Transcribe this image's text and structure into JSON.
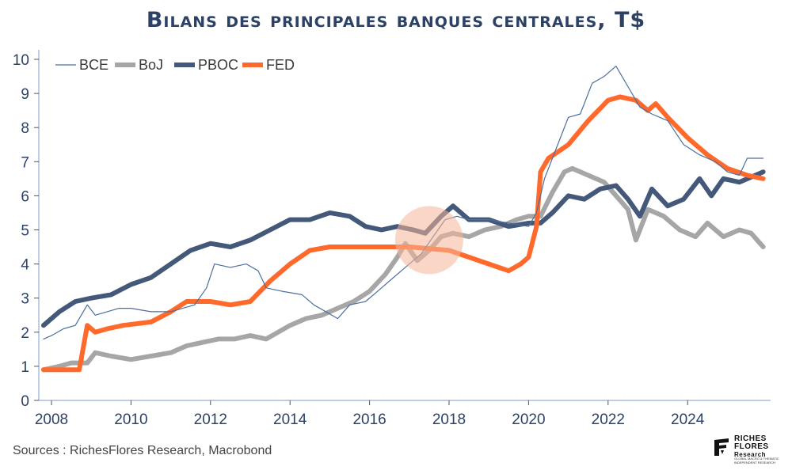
{
  "title": "Bilans des principales banques centrales, T$",
  "source": "Sources : RichesFlores Research, Macrobond",
  "logo": {
    "line1": "RICHES",
    "line2": "FLORES",
    "line3": "Research",
    "tagline1": "GLOBAL MACRO & THEMATIC",
    "tagline2": "INDEPENDENT RESEARCH"
  },
  "colors": {
    "BCE": "#4a6fa0",
    "BoJ": "#a6a6a6",
    "PBOC": "#44597a",
    "FED": "#ff6a2c",
    "axis": "#7f9cc4",
    "text": "#2b4266",
    "highlight": "#f6b597"
  },
  "chart_data": {
    "type": "line",
    "title": "Bilans des principales banques centrales, T$",
    "xlabel": "",
    "ylabel": "",
    "xlim": [
      2007.7,
      2026.1
    ],
    "ylim": [
      0,
      10
    ],
    "xticks": [
      2008,
      2010,
      2012,
      2014,
      2016,
      2018,
      2020,
      2022,
      2024
    ],
    "yticks": [
      0,
      1,
      2,
      3,
      4,
      5,
      6,
      7,
      8,
      9,
      10
    ],
    "grid": false,
    "legend": "top-left",
    "annotations": [
      {
        "type": "circle",
        "x": 2017.5,
        "y": 4.7,
        "label": ""
      }
    ],
    "series": [
      {
        "name": "BCE",
        "points": [
          [
            2007.8,
            1.8
          ],
          [
            2008.0,
            1.9
          ],
          [
            2008.3,
            2.1
          ],
          [
            2008.6,
            2.2
          ],
          [
            2008.9,
            2.8
          ],
          [
            2009.1,
            2.5
          ],
          [
            2009.4,
            2.6
          ],
          [
            2009.7,
            2.7
          ],
          [
            2010.0,
            2.7
          ],
          [
            2010.5,
            2.6
          ],
          [
            2011.0,
            2.6
          ],
          [
            2011.3,
            2.7
          ],
          [
            2011.6,
            2.8
          ],
          [
            2011.9,
            3.3
          ],
          [
            2012.1,
            4.0
          ],
          [
            2012.5,
            3.9
          ],
          [
            2012.9,
            4.0
          ],
          [
            2013.2,
            3.8
          ],
          [
            2013.4,
            3.3
          ],
          [
            2013.8,
            3.2
          ],
          [
            2014.3,
            3.1
          ],
          [
            2014.6,
            2.8
          ],
          [
            2014.9,
            2.6
          ],
          [
            2015.2,
            2.4
          ],
          [
            2015.5,
            2.8
          ],
          [
            2015.9,
            2.9
          ],
          [
            2016.3,
            3.3
          ],
          [
            2016.7,
            3.7
          ],
          [
            2017.0,
            4.0
          ],
          [
            2017.3,
            4.3
          ],
          [
            2017.6,
            4.8
          ],
          [
            2017.9,
            5.3
          ],
          [
            2018.2,
            5.4
          ],
          [
            2018.5,
            5.3
          ],
          [
            2019.0,
            5.3
          ],
          [
            2019.5,
            5.2
          ],
          [
            2020.0,
            5.1
          ],
          [
            2020.2,
            5.5
          ],
          [
            2020.4,
            6.5
          ],
          [
            2020.7,
            7.4
          ],
          [
            2021.0,
            8.3
          ],
          [
            2021.3,
            8.4
          ],
          [
            2021.6,
            9.3
          ],
          [
            2021.9,
            9.5
          ],
          [
            2022.2,
            9.8
          ],
          [
            2022.5,
            9.2
          ],
          [
            2022.8,
            8.6
          ],
          [
            2023.1,
            8.4
          ],
          [
            2023.5,
            8.2
          ],
          [
            2023.9,
            7.5
          ],
          [
            2024.3,
            7.2
          ],
          [
            2024.7,
            7.0
          ],
          [
            2025.0,
            6.7
          ],
          [
            2025.3,
            6.6
          ],
          [
            2025.5,
            7.1
          ],
          [
            2025.9,
            7.1
          ]
        ]
      },
      {
        "name": "BoJ",
        "points": [
          [
            2007.8,
            0.9
          ],
          [
            2008.2,
            1.0
          ],
          [
            2008.5,
            1.1
          ],
          [
            2008.9,
            1.1
          ],
          [
            2009.1,
            1.4
          ],
          [
            2009.5,
            1.3
          ],
          [
            2010.0,
            1.2
          ],
          [
            2010.5,
            1.3
          ],
          [
            2011.0,
            1.4
          ],
          [
            2011.4,
            1.6
          ],
          [
            2011.8,
            1.7
          ],
          [
            2012.2,
            1.8
          ],
          [
            2012.6,
            1.8
          ],
          [
            2013.0,
            1.9
          ],
          [
            2013.4,
            1.8
          ],
          [
            2013.7,
            2.0
          ],
          [
            2014.0,
            2.2
          ],
          [
            2014.4,
            2.4
          ],
          [
            2014.8,
            2.5
          ],
          [
            2015.2,
            2.7
          ],
          [
            2015.6,
            2.9
          ],
          [
            2016.0,
            3.2
          ],
          [
            2016.4,
            3.7
          ],
          [
            2016.7,
            4.2
          ],
          [
            2016.9,
            4.6
          ],
          [
            2017.2,
            4.1
          ],
          [
            2017.5,
            4.4
          ],
          [
            2017.8,
            4.8
          ],
          [
            2018.1,
            4.9
          ],
          [
            2018.5,
            4.8
          ],
          [
            2018.9,
            5.0
          ],
          [
            2019.3,
            5.1
          ],
          [
            2019.7,
            5.3
          ],
          [
            2020.0,
            5.4
          ],
          [
            2020.3,
            5.4
          ],
          [
            2020.6,
            6.1
          ],
          [
            2020.9,
            6.7
          ],
          [
            2021.1,
            6.8
          ],
          [
            2021.5,
            6.6
          ],
          [
            2021.9,
            6.4
          ],
          [
            2022.2,
            6.0
          ],
          [
            2022.5,
            5.6
          ],
          [
            2022.7,
            4.7
          ],
          [
            2023.0,
            5.6
          ],
          [
            2023.4,
            5.4
          ],
          [
            2023.8,
            5.0
          ],
          [
            2024.2,
            4.8
          ],
          [
            2024.5,
            5.2
          ],
          [
            2024.9,
            4.8
          ],
          [
            2025.3,
            5.0
          ],
          [
            2025.6,
            4.9
          ],
          [
            2025.9,
            4.5
          ]
        ]
      },
      {
        "name": "PBOC",
        "points": [
          [
            2007.8,
            2.2
          ],
          [
            2008.2,
            2.6
          ],
          [
            2008.6,
            2.9
          ],
          [
            2009.0,
            3.0
          ],
          [
            2009.5,
            3.1
          ],
          [
            2010.0,
            3.4
          ],
          [
            2010.5,
            3.6
          ],
          [
            2011.0,
            4.0
          ],
          [
            2011.5,
            4.4
          ],
          [
            2012.0,
            4.6
          ],
          [
            2012.5,
            4.5
          ],
          [
            2013.0,
            4.7
          ],
          [
            2013.5,
            5.0
          ],
          [
            2014.0,
            5.3
          ],
          [
            2014.5,
            5.3
          ],
          [
            2015.0,
            5.5
          ],
          [
            2015.5,
            5.4
          ],
          [
            2015.9,
            5.1
          ],
          [
            2016.3,
            5.0
          ],
          [
            2016.7,
            5.1
          ],
          [
            2017.1,
            5.0
          ],
          [
            2017.4,
            4.9
          ],
          [
            2017.8,
            5.4
          ],
          [
            2018.1,
            5.7
          ],
          [
            2018.5,
            5.3
          ],
          [
            2019.0,
            5.3
          ],
          [
            2019.5,
            5.1
          ],
          [
            2020.0,
            5.2
          ],
          [
            2020.3,
            5.2
          ],
          [
            2020.6,
            5.5
          ],
          [
            2021.0,
            6.0
          ],
          [
            2021.4,
            5.9
          ],
          [
            2021.8,
            6.2
          ],
          [
            2022.2,
            6.3
          ],
          [
            2022.5,
            5.9
          ],
          [
            2022.8,
            5.4
          ],
          [
            2023.1,
            6.2
          ],
          [
            2023.5,
            5.7
          ],
          [
            2023.9,
            5.9
          ],
          [
            2024.3,
            6.5
          ],
          [
            2024.6,
            6.0
          ],
          [
            2024.9,
            6.5
          ],
          [
            2025.3,
            6.4
          ],
          [
            2025.9,
            6.7
          ]
        ]
      },
      {
        "name": "FED",
        "points": [
          [
            2007.8,
            0.9
          ],
          [
            2008.4,
            0.9
          ],
          [
            2008.7,
            0.9
          ],
          [
            2008.9,
            2.2
          ],
          [
            2009.1,
            2.0
          ],
          [
            2009.4,
            2.1
          ],
          [
            2009.8,
            2.2
          ],
          [
            2010.5,
            2.3
          ],
          [
            2011.0,
            2.6
          ],
          [
            2011.4,
            2.9
          ],
          [
            2012.0,
            2.9
          ],
          [
            2012.5,
            2.8
          ],
          [
            2013.0,
            2.9
          ],
          [
            2013.5,
            3.5
          ],
          [
            2014.0,
            4.0
          ],
          [
            2014.5,
            4.4
          ],
          [
            2015.0,
            4.5
          ],
          [
            2016.0,
            4.5
          ],
          [
            2017.0,
            4.5
          ],
          [
            2018.0,
            4.4
          ],
          [
            2018.5,
            4.2
          ],
          [
            2019.0,
            4.0
          ],
          [
            2019.5,
            3.8
          ],
          [
            2019.8,
            4.0
          ],
          [
            2020.0,
            4.2
          ],
          [
            2020.2,
            5.1
          ],
          [
            2020.3,
            6.7
          ],
          [
            2020.5,
            7.1
          ],
          [
            2021.0,
            7.5
          ],
          [
            2021.5,
            8.2
          ],
          [
            2022.0,
            8.8
          ],
          [
            2022.3,
            8.9
          ],
          [
            2022.7,
            8.8
          ],
          [
            2023.0,
            8.5
          ],
          [
            2023.2,
            8.7
          ],
          [
            2023.5,
            8.3
          ],
          [
            2024.0,
            7.7
          ],
          [
            2024.5,
            7.2
          ],
          [
            2025.0,
            6.8
          ],
          [
            2025.5,
            6.6
          ],
          [
            2025.9,
            6.5
          ]
        ]
      }
    ]
  }
}
